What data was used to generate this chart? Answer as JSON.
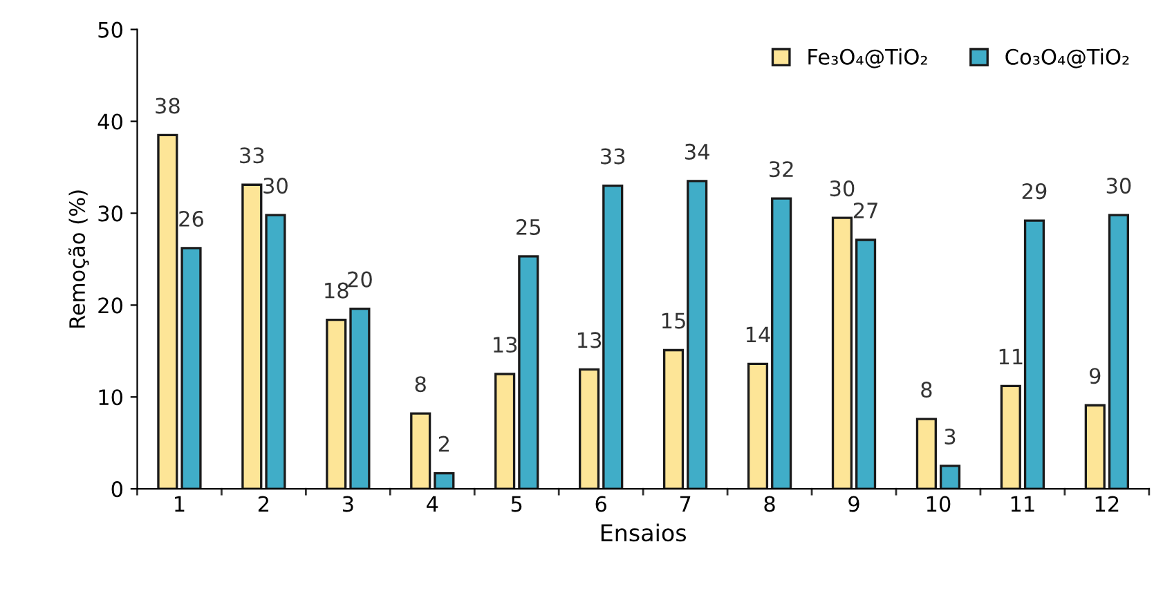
{
  "chart_data": {
    "type": "bar",
    "xlabel": "Ensaios",
    "ylabel": "Remoção (%)",
    "categories": [
      "1",
      "2",
      "3",
      "4",
      "5",
      "6",
      "7",
      "8",
      "9",
      "10",
      "11",
      "12"
    ],
    "series": [
      {
        "name": "Fe₃O₄@TiO₂",
        "color": "#fde597",
        "values": [
          38.5,
          33.1,
          18.4,
          8.2,
          12.5,
          13.0,
          15.1,
          13.6,
          29.5,
          7.6,
          11.2,
          9.1
        ],
        "value_labels": [
          "38",
          "33",
          "18",
          "8",
          "13",
          "13",
          "15",
          "14",
          "30",
          "8",
          "11",
          "9"
        ]
      },
      {
        "name": "Co₃O₄@TiO₂",
        "color": "#40adc8",
        "values": [
          26.2,
          29.8,
          19.6,
          1.7,
          25.3,
          33.0,
          33.5,
          31.6,
          27.1,
          2.5,
          29.2,
          29.8
        ],
        "value_labels": [
          "26",
          "30",
          "20",
          "2",
          "25",
          "33",
          "34",
          "32",
          "27",
          "3",
          "29",
          "30"
        ]
      }
    ],
    "ylim": [
      0,
      50
    ],
    "yticks": [
      0,
      10,
      20,
      30,
      40,
      50
    ],
    "grid": false,
    "legend": "top right"
  }
}
